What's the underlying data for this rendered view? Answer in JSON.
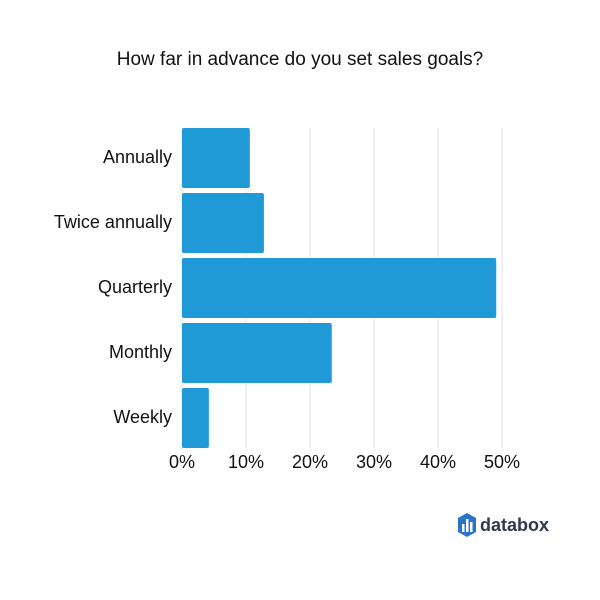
{
  "chart_data": {
    "type": "bar",
    "orientation": "horizontal",
    "title": "How far in advance do you set sales goals?",
    "categories": [
      "Annually",
      "Twice annually",
      "Quarterly",
      "Monthly",
      "Weekly"
    ],
    "values": [
      10.6,
      12.8,
      49.1,
      23.4,
      4.2
    ],
    "color": "#1f9ad6",
    "xlim": [
      0,
      50
    ],
    "xticks": [
      {
        "value": 0,
        "label": "0%"
      },
      {
        "value": 10,
        "label": "10%"
      },
      {
        "value": 20,
        "label": "20%"
      },
      {
        "value": 30,
        "label": "30%"
      },
      {
        "value": 40,
        "label": "40%"
      },
      {
        "value": 50,
        "label": "50%"
      }
    ],
    "grid": true
  },
  "brand": "databox"
}
